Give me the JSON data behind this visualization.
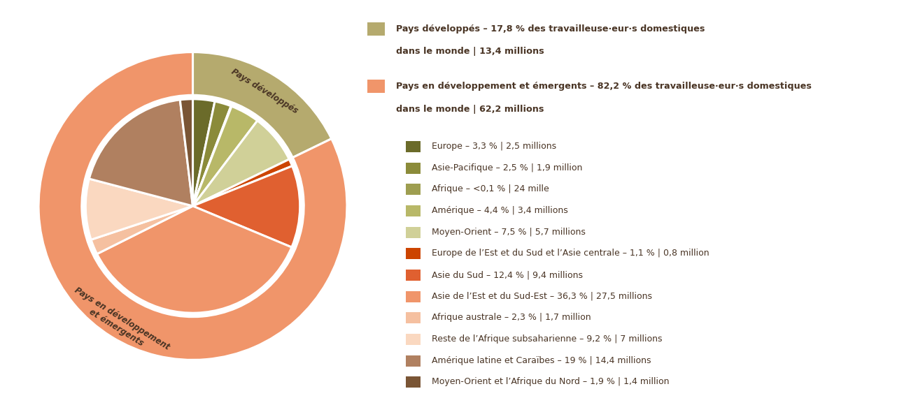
{
  "outer_values": [
    17.8,
    82.2
  ],
  "outer_colors": [
    "#b5aa6e",
    "#f0956a"
  ],
  "inner_values": [
    3.3,
    2.5,
    0.1,
    4.4,
    7.5,
    1.1,
    12.4,
    36.3,
    2.3,
    9.2,
    19.0,
    1.9
  ],
  "inner_colors": [
    "#6b6b2a",
    "#8b8b3a",
    "#9e9e50",
    "#b8b868",
    "#d0d098",
    "#cc4400",
    "#e06030",
    "#f0956a",
    "#f5c0a0",
    "#fad8c0",
    "#b08060",
    "#7a5535"
  ],
  "label_dev": "Pays développés",
  "label_emerg": "Pays en développement\net émergents",
  "text_color": "#4a3525",
  "bg_color": "#ffffff",
  "legend_main": [
    {
      "color": "#b5aa6e",
      "line1": "Pays développés – 17,8 % des travailleuse·eur·s domestiques",
      "line2": "dans le monde | 13,4 millions"
    },
    {
      "color": "#f0956a",
      "line1": "Pays en développement et émergents – 82,2 % des travailleuse·eur·s domestiques",
      "line2": "dans le monde | 62,2 millions"
    }
  ],
  "legend_sub": [
    {
      "color": "#6b6b2a",
      "text": "Europe – 3,3 % | 2,5 millions"
    },
    {
      "color": "#8b8b3a",
      "text": "Asie-Pacifique – 2,5 % | 1,9 million"
    },
    {
      "color": "#9e9e50",
      "text": "Afrique – <0,1 % | 24 mille"
    },
    {
      "color": "#b8b868",
      "text": "Amérique – 4,4 % | 3,4 millions"
    },
    {
      "color": "#d0d098",
      "text": "Moyen-Orient – 7,5 % | 5,7 millions"
    },
    {
      "color": "#cc4400",
      "text": "Europe de l’Est et du Sud et l’Asie centrale – 1,1 % | 0,8 million"
    },
    {
      "color": "#e06030",
      "text": "Asie du Sud – 12,4 % | 9,4 millions"
    },
    {
      "color": "#f0956a",
      "text": "Asie de l’Est et du Sud-Est – 36,3 % | 27,5 millions"
    },
    {
      "color": "#f5c0a0",
      "text": "Afrique australe – 2,3 % | 1,7 million"
    },
    {
      "color": "#fad8c0",
      "text": "Reste de l’Afrique subsaharienne – 9,2 % | 7 millions"
    },
    {
      "color": "#b08060",
      "text": "Amérique latine et Caraïbes – 19 % | 14,4 millions"
    },
    {
      "color": "#7a5535",
      "text": "Moyen-Orient et l’Afrique du Nord – 1,9 % | 1,4 million"
    }
  ]
}
